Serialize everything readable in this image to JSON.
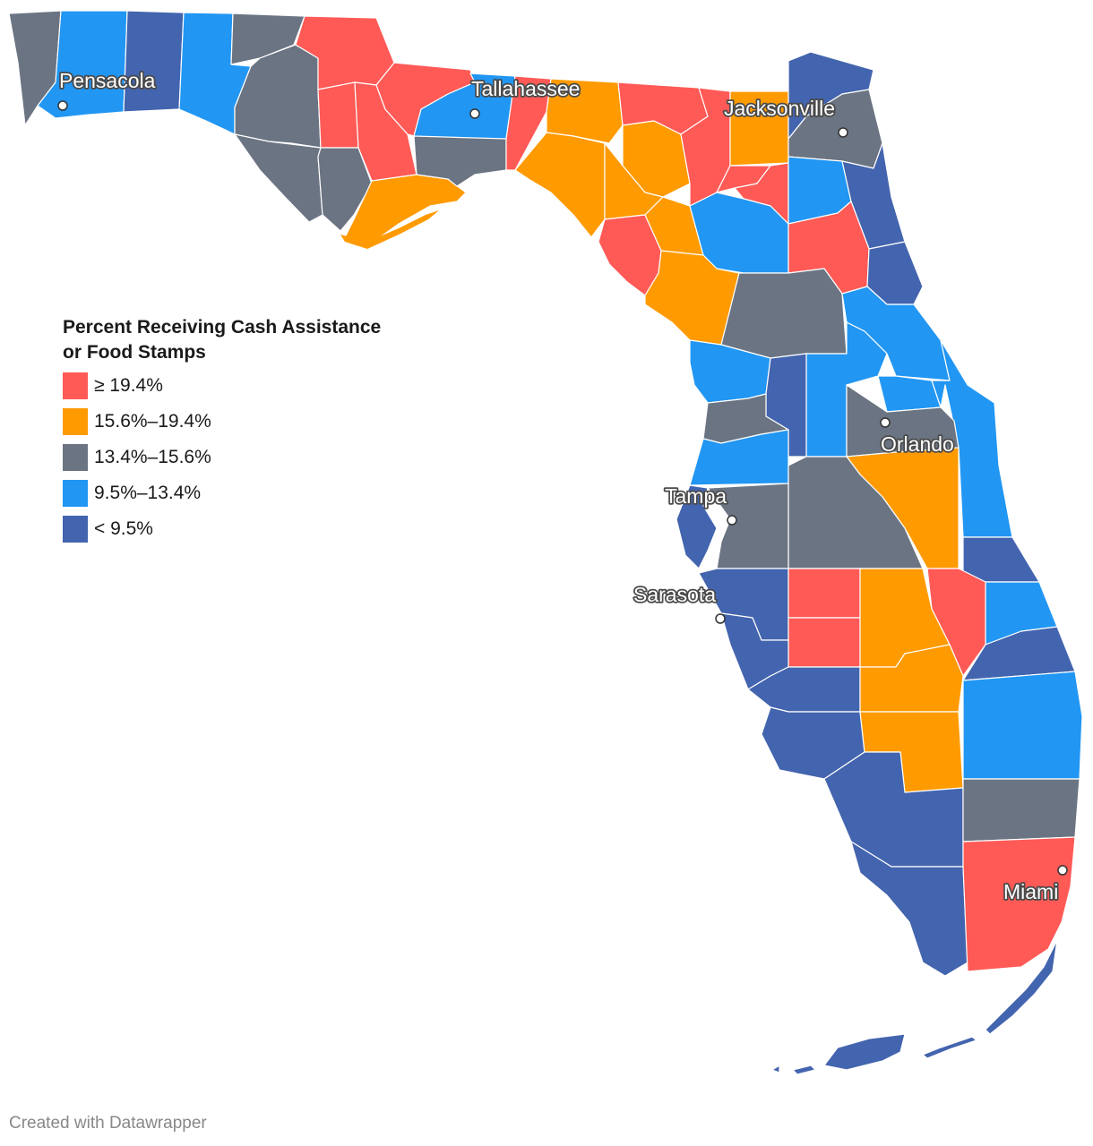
{
  "legend": {
    "title_line1": "Percent Receiving Cash Assistance",
    "title_line2": "or Food Stamps",
    "items": [
      {
        "label": "≥ 19.4%",
        "color": "#ff5a56"
      },
      {
        "label": "15.6%–19.4%",
        "color": "#ff9a00"
      },
      {
        "label": "13.4%–15.6%",
        "color": "#6b7482"
      },
      {
        "label": "9.5%–13.4%",
        "color": "#2196f3"
      },
      {
        "label": "< 9.5%",
        "color": "#4364ae"
      }
    ]
  },
  "cities": [
    {
      "name": "Pensacola"
    },
    {
      "name": "Tallahassee"
    },
    {
      "name": "Jacksonville"
    },
    {
      "name": "Orlando"
    },
    {
      "name": "Tampa"
    },
    {
      "name": "Sarasota"
    },
    {
      "name": "Miami"
    }
  ],
  "footer": "Created with Datawrapper"
}
